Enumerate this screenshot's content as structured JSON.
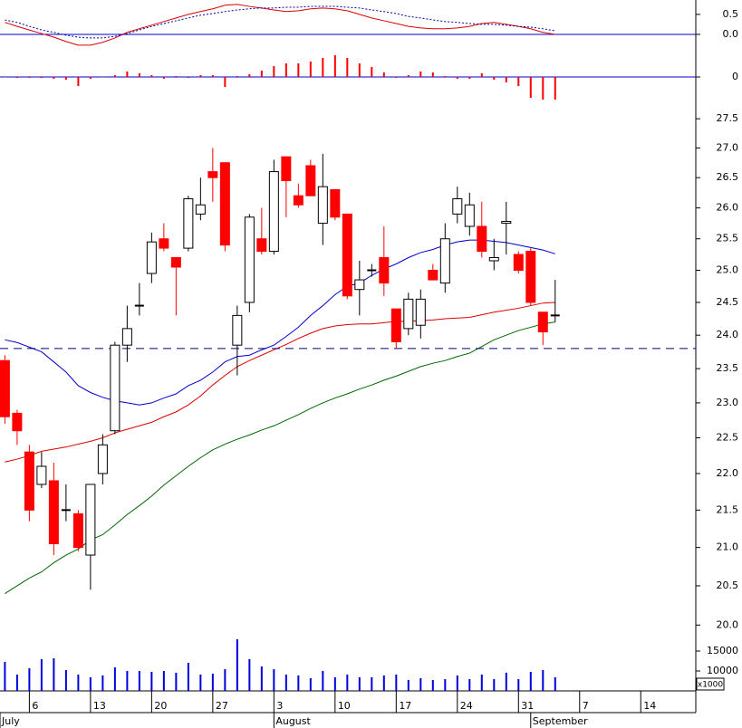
{
  "chart_data": [
    {
      "type": "line",
      "xlim": [
        -0.4,
        56.5
      ],
      "ylim": [
        -0.84,
        0.86
      ],
      "yticks": [
        0.5,
        {
          "value": 0,
          "label": "0.0"
        }
      ],
      "zero_line_color": "#0000cc",
      "series": [
        {
          "color": "#dd0000",
          "style": "solid",
          "values": [
            0.3,
            0.2,
            0.11,
            0.02,
            -0.07,
            -0.18,
            -0.27,
            -0.27,
            -0.2,
            -0.09,
            0.05,
            0.14,
            0.23,
            0.32,
            0.41,
            0.5,
            0.57,
            0.64,
            0.73,
            0.75,
            0.7,
            0.66,
            0.61,
            0.57,
            0.59,
            0.64,
            0.66,
            0.64,
            0.59,
            0.5,
            0.41,
            0.34,
            0.27,
            0.2,
            0.16,
            0.14,
            0.14,
            0.16,
            0.2,
            0.27,
            0.3,
            0.25,
            0.2,
            0.14,
            0.05,
            0
          ]
        },
        {
          "color": "#0000aa",
          "style": "dotted",
          "values": [
            0.36,
            0.3,
            0.2,
            0.11,
            0.05,
            -0.02,
            -0.07,
            -0.09,
            -0.09,
            -0.05,
            0.02,
            0.11,
            0.2,
            0.27,
            0.34,
            0.41,
            0.48,
            0.52,
            0.57,
            0.61,
            0.64,
            0.66,
            0.66,
            0.68,
            0.68,
            0.7,
            0.7,
            0.7,
            0.68,
            0.66,
            0.61,
            0.57,
            0.52,
            0.45,
            0.41,
            0.36,
            0.32,
            0.3,
            0.27,
            0.25,
            0.25,
            0.23,
            0.2,
            0.18,
            0.14,
            0.09
          ]
        }
      ]
    },
    {
      "type": "bar",
      "xlim": [
        -0.4,
        56.5
      ],
      "ylim": [
        -0.5,
        0.5
      ],
      "yticks": [
        0
      ],
      "zero_line_color": "#0000cc",
      "color": "#ff0000",
      "values": [
        0,
        -0.02,
        -0.02,
        -0.02,
        -0.04,
        -0.06,
        -0.2,
        -0.04,
        0,
        0.04,
        0.12,
        0.08,
        0.04,
        -0.04,
        0.02,
        -0.02,
        0.04,
        0.04,
        -0.22,
        0.02,
        0.06,
        0.14,
        0.24,
        0.3,
        0.3,
        0.34,
        0.42,
        0.48,
        0.42,
        0.3,
        0.22,
        0.1,
        -0.02,
        0.04,
        0.12,
        0.1,
        0.02,
        -0.04,
        -0.04,
        0.08,
        -0.06,
        -0.12,
        -0.2,
        -0.46,
        -0.5,
        -0.5
      ]
    },
    {
      "type": "candlestick",
      "xlim": [
        -0.4,
        56.5
      ],
      "ylim": [
        19.89,
        28.04
      ],
      "log": true,
      "yticks": [
        27.5,
        {
          "value": 27,
          "label": "27.0"
        },
        26.5,
        {
          "value": 26,
          "label": "26.0"
        },
        25.5,
        {
          "value": 25,
          "label": "25.0"
        },
        24.5,
        {
          "value": 24,
          "label": "24.0"
        },
        23.5,
        {
          "value": 23,
          "label": "23.0"
        },
        22.5,
        {
          "value": 22,
          "label": "22.0"
        },
        21.5,
        {
          "value": 21,
          "label": "21.0"
        },
        20.5,
        {
          "value": 20,
          "label": "20.0"
        }
      ],
      "up_color": "#000000",
      "down_color": "#ff0000",
      "open": [
        23.62,
        22.85,
        22.3,
        21.85,
        21.9,
        21.5,
        21.45,
        20.9,
        22.0,
        22.6,
        23.85,
        24.45,
        24.95,
        25.5,
        25.2,
        25.35,
        25.9,
        26.6,
        26.75,
        23.85,
        24.5,
        25.5,
        25.3,
        26.85,
        26.2,
        26.7,
        25.75,
        26.3,
        25.9,
        24.7,
        25.0,
        25.2,
        24.4,
        24.1,
        24.15,
        25.0,
        24.8,
        25.9,
        25.7,
        25.7,
        25.15,
        25.75,
        25.25,
        25.3,
        24.35,
        24.3
      ],
      "high": [
        23.7,
        22.9,
        22.4,
        22.3,
        22.15,
        21.85,
        21.5,
        21.85,
        22.55,
        23.9,
        24.45,
        24.8,
        25.6,
        25.75,
        25.2,
        26.2,
        26.5,
        27.0,
        26.75,
        24.45,
        25.9,
        26.0,
        26.8,
        26.85,
        26.4,
        26.8,
        26.9,
        26.3,
        25.9,
        25.15,
        25.1,
        25.7,
        24.4,
        24.65,
        24.7,
        25.1,
        25.75,
        26.35,
        26.25,
        26.1,
        25.5,
        26.1,
        25.3,
        25.35,
        24.35,
        24.85
      ],
      "low": [
        22.7,
        22.4,
        21.35,
        21.8,
        20.9,
        21.35,
        20.95,
        20.45,
        21.85,
        22.55,
        23.6,
        24.3,
        24.8,
        25.3,
        24.3,
        25.3,
        25.8,
        26.1,
        25.3,
        23.4,
        24.35,
        25.25,
        25.25,
        25.85,
        26.0,
        26.2,
        25.4,
        25.8,
        24.55,
        24.3,
        24.9,
        24.6,
        23.8,
        24.0,
        23.95,
        24.85,
        24.65,
        25.75,
        25.55,
        25.2,
        25.0,
        25.25,
        24.95,
        24.45,
        23.85,
        24.2
      ],
      "close": [
        22.8,
        22.6,
        21.5,
        22.1,
        21.05,
        21.5,
        21.0,
        21.85,
        22.4,
        23.85,
        24.1,
        24.45,
        25.45,
        25.35,
        25.05,
        26.15,
        26.05,
        26.5,
        25.4,
        24.3,
        25.85,
        25.3,
        26.6,
        26.45,
        26.05,
        26.2,
        26.35,
        25.85,
        24.6,
        24.85,
        25.0,
        24.8,
        23.9,
        24.55,
        24.55,
        24.85,
        25.5,
        26.15,
        26.05,
        25.3,
        25.2,
        25.78,
        25.0,
        24.5,
        24.05,
        24.3
      ],
      "series": [
        {
          "color": "#0000cc",
          "values": [
            23.93,
            23.89,
            23.82,
            23.75,
            23.6,
            23.45,
            23.25,
            23.15,
            23.08,
            23.03,
            23.0,
            22.97,
            23.0,
            23.07,
            23.13,
            23.25,
            23.33,
            23.45,
            23.6,
            23.68,
            23.7,
            23.78,
            23.85,
            23.98,
            24.12,
            24.3,
            24.45,
            24.62,
            24.75,
            24.8,
            24.92,
            25.02,
            25.1,
            25.2,
            25.28,
            25.33,
            25.4,
            25.45,
            25.48,
            25.48,
            25.46,
            25.44,
            25.4,
            25.36,
            25.32,
            25.26
          ]
        },
        {
          "color": "#dd0000",
          "values": [
            22.16,
            22.2,
            22.25,
            22.31,
            22.34,
            22.37,
            22.41,
            22.45,
            22.5,
            22.57,
            22.62,
            22.67,
            22.72,
            22.8,
            22.87,
            22.97,
            23.1,
            23.26,
            23.4,
            23.53,
            23.62,
            23.7,
            23.78,
            23.86,
            23.95,
            24.03,
            24.1,
            24.14,
            24.16,
            24.17,
            24.17,
            24.19,
            24.21,
            24.21,
            24.22,
            24.23,
            24.25,
            24.26,
            24.27,
            24.31,
            24.35,
            24.38,
            24.41,
            24.45,
            24.49,
            24.5
          ]
        },
        {
          "color": "#006600",
          "values": [
            20.4,
            20.5,
            20.6,
            20.68,
            20.8,
            20.9,
            20.98,
            21.1,
            21.17,
            21.3,
            21.44,
            21.56,
            21.69,
            21.84,
            21.97,
            22.1,
            22.22,
            22.33,
            22.41,
            22.48,
            22.54,
            22.61,
            22.67,
            22.75,
            22.83,
            22.92,
            23.0,
            23.07,
            23.13,
            23.2,
            23.26,
            23.33,
            23.39,
            23.46,
            23.53,
            23.58,
            23.62,
            23.68,
            23.73,
            23.83,
            23.93,
            24.0,
            24.07,
            24.12,
            24.17,
            24.2
          ]
        }
      ],
      "hline": {
        "value": 23.8,
        "color": "#000080",
        "style": "dashed"
      }
    },
    {
      "type": "bar",
      "xlim": [
        -0.4,
        56.5
      ],
      "ylim": [
        5000,
        19318
      ],
      "yticks": [
        15000,
        10000
      ],
      "unit_label": "x1000",
      "color": "#0000dd",
      "values": [
        12270,
        9090,
        10680,
        12950,
        13180,
        10230,
        9090,
        8410,
        8860,
        10910,
        10000,
        10000,
        9770,
        10000,
        9550,
        12050,
        9090,
        9320,
        10450,
        17950,
        12950,
        11140,
        10450,
        9090,
        8860,
        8180,
        10000,
        8410,
        9090,
        8410,
        8410,
        8860,
        9090,
        7730,
        8180,
        7730,
        7950,
        8860,
        7950,
        9090,
        7950,
        9550,
        7950,
        9770,
        10230,
        8410
      ],
      "xticks": [
        {
          "value": 2,
          "label": "6"
        },
        {
          "value": 7,
          "label": "13"
        },
        {
          "value": 12,
          "label": "20"
        },
        {
          "value": 17,
          "label": "27"
        },
        {
          "value": 22,
          "label": "3"
        },
        {
          "value": 27,
          "label": "10"
        },
        {
          "value": 32,
          "label": "17"
        },
        {
          "value": 37,
          "label": "24"
        },
        {
          "value": 42,
          "label": "31"
        },
        {
          "value": 47,
          "label": "7"
        },
        {
          "value": 52,
          "label": "14"
        }
      ],
      "month_ticks": [
        {
          "value": -0.4,
          "label": "July"
        },
        {
          "value": 22,
          "label": "August"
        },
        {
          "value": 43,
          "label": "September"
        }
      ]
    }
  ]
}
